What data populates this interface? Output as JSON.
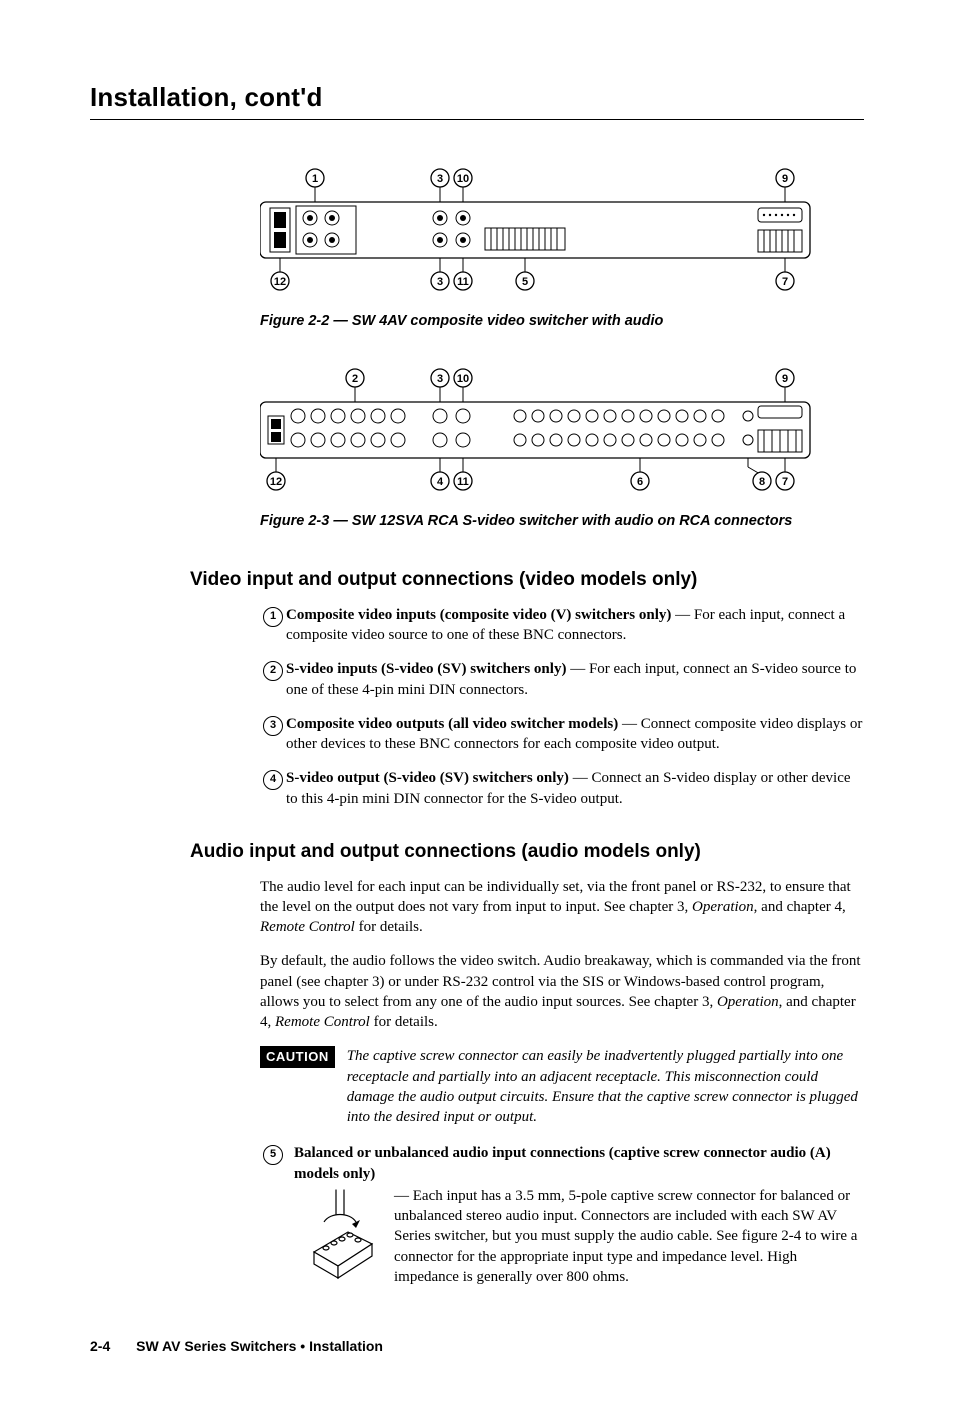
{
  "page": {
    "title": "Installation, cont'd"
  },
  "figures": {
    "f1": {
      "caption": "Figure 2-2 — SW 4AV composite video switcher with audio",
      "callouts_top": [
        "1",
        "3",
        "10",
        "9"
      ],
      "callouts_bottom": [
        "12",
        "3",
        "11",
        "5",
        "7"
      ]
    },
    "f2": {
      "caption": "Figure 2-3 — SW 12SVA RCA S-video switcher with audio on RCA connectors",
      "callouts_top": [
        "2",
        "3",
        "10",
        "9"
      ],
      "callouts_bottom": [
        "12",
        "4",
        "11",
        "6",
        "8",
        "7"
      ]
    }
  },
  "sections": {
    "video": {
      "heading": "Video input and output connections (video models only)",
      "items": [
        {
          "n": "1",
          "bold": "Composite video inputs (composite video (V) switchers only)",
          "rest": " — For each input, connect a composite video source to one of these BNC connectors."
        },
        {
          "n": "2",
          "bold": "S-video inputs (S-video (SV) switchers only)",
          "rest": " — For each input, connect an S-video source to one of these 4-pin mini DIN connectors."
        },
        {
          "n": "3",
          "bold": "Composite video outputs (all video switcher models)",
          "rest": " — Connect composite video displays or other devices to these BNC connectors for each composite video output."
        },
        {
          "n": "4",
          "bold": "S-video output (S-video (SV) switchers only)",
          "rest": " — Connect an S-video display or other device to this 4-pin mini DIN connector for the S-video output."
        }
      ]
    },
    "audio": {
      "heading": "Audio input and output connections (audio models only)",
      "p1_a": "The audio level for each input can be individually set, via the front panel or RS-232, to ensure that the level on the output does not vary from input to input.  See chapter 3, ",
      "p1_em1": "Operation",
      "p1_b": ", and chapter 4, ",
      "p1_em2": "Remote Control",
      "p1_c": " for details.",
      "p2_a": "By default, the audio follows the video switch.  Audio breakaway, which is commanded via the front panel (see chapter 3) or under RS-232 control via the SIS or Windows-based control program, allows you to select from any one of the audio input sources.  See chapter 3, ",
      "p2_em1": "Operation",
      "p2_b": ", and chapter 4, ",
      "p2_em2": "Remote Control",
      "p2_c": " for details.",
      "caution_label": "CAUTION",
      "caution_text": "The captive screw connector can easily be inadvertently plugged partially into one receptacle and partially into an adjacent receptacle.  This misconnection could damage the audio output circuits.  Ensure that the captive screw connector is plugged into the desired input or output.",
      "item5": {
        "n": "5",
        "bold": "Balanced or unbalanced audio input connections (captive screw connector audio (A) models only)",
        "rest": " — Each input has a 3.5 mm, 5-pole captive screw connector for balanced or unbalanced stereo audio input.  Connectors are included with each SW AV Series switcher, but you must supply the audio cable.  See figure 2-4 to wire a connector for the appropriate input type and impedance level.  High impedance is generally over 800 ohms."
      }
    }
  },
  "footer": {
    "page_num": "2-4",
    "title": "SW AV Series Switchers • Installation"
  }
}
